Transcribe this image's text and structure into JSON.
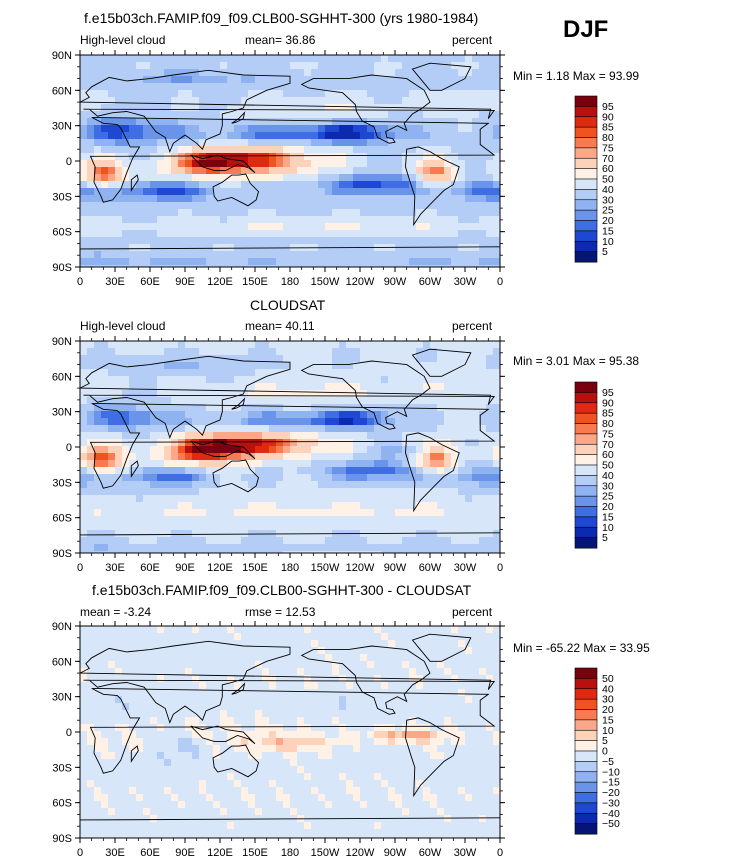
{
  "season": "DJF",
  "panels": [
    {
      "title": "f.e15b03ch.FAMIP.f09_f09.CLB00-SGHHT-300 (yrs 1980-1984)",
      "left_label": "High-level cloud",
      "center_label": "mean=  36.86",
      "right_label": "percent",
      "minmax": "Min =   1.18 Max =  93.99",
      "colorbar": {
        "labels": [
          "95",
          "90",
          "85",
          "80",
          "75",
          "70",
          "60",
          "50",
          "40",
          "30",
          "25",
          "20",
          "15",
          "10",
          "5"
        ],
        "colors": [
          "#7a0010",
          "#b80f0f",
          "#dd2a10",
          "#f05220",
          "#f87a50",
          "#fca888",
          "#fdd2bb",
          "#fff1e6",
          "#d8e6fa",
          "#b3cdf6",
          "#8fb2f0",
          "#6a94ea",
          "#3f6ee4",
          "#1e48d4",
          "#0b2ab0",
          "#061575"
        ]
      }
    },
    {
      "title": "CLOUDSAT",
      "left_label": "High-level cloud",
      "center_label": "mean=  40.11",
      "right_label": "percent",
      "minmax": "Min =   3.01 Max =  95.38",
      "colorbar": {
        "labels": [
          "95",
          "90",
          "85",
          "80",
          "75",
          "70",
          "60",
          "50",
          "40",
          "30",
          "25",
          "20",
          "15",
          "10",
          "5"
        ],
        "colors": [
          "#7a0010",
          "#b80f0f",
          "#dd2a10",
          "#f05220",
          "#f87a50",
          "#fca888",
          "#fdd2bb",
          "#fff1e6",
          "#d8e6fa",
          "#b3cdf6",
          "#8fb2f0",
          "#6a94ea",
          "#3f6ee4",
          "#1e48d4",
          "#0b2ab0",
          "#061575"
        ]
      }
    },
    {
      "title": "f.e15b03ch.FAMIP.f09_f09.CLB00-SGHHT-300 - CLOUDSAT",
      "left_label": "mean =  -3.24",
      "center_label": "rmse =  12.53",
      "right_label": "percent",
      "minmax": "Min = -65.22 Max =  33.95",
      "colorbar": {
        "labels": [
          "50",
          "40",
          "30",
          "20",
          "15",
          "10",
          "5",
          "0",
          "−5",
          "−10",
          "−15",
          "−20",
          "−30",
          "−40",
          "−50"
        ],
        "colors": [
          "#7a0010",
          "#b80f0f",
          "#dd2a10",
          "#f05220",
          "#f87a50",
          "#fca888",
          "#fdd2bb",
          "#fff1e6",
          "#d8e6fa",
          "#b3cdf6",
          "#8fb2f0",
          "#6a94ea",
          "#3f6ee4",
          "#1e48d4",
          "#0b2ab0",
          "#061575"
        ]
      }
    }
  ],
  "lat_ticks": [
    "90N",
    "60N",
    "30N",
    "0",
    "30S",
    "60S",
    "90S"
  ],
  "lon_ticks": [
    "0",
    "30E",
    "60E",
    "90E",
    "120E",
    "150E",
    "180",
    "150W",
    "120W",
    "90W",
    "60W",
    "30W",
    "0"
  ]
}
